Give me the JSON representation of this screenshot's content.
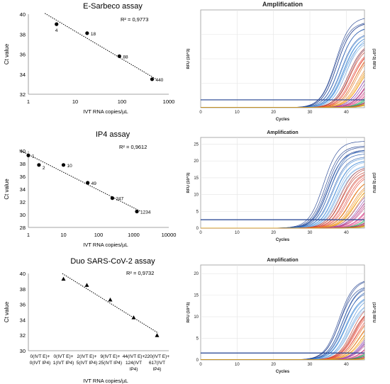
{
  "colors": {
    "trend": "#000000",
    "threshold": "#1f3f8f",
    "amp_palette": [
      "#1f3f8f",
      "#2a5db0",
      "#4a90d9",
      "#7fb3e6",
      "#c0392b",
      "#e74c3c",
      "#e67e22",
      "#f39c12",
      "#8e44ad",
      "#c0397f",
      "#e75a9a",
      "#27ae60",
      "#b03060",
      "#d4a017"
    ]
  },
  "left_panels": [
    {
      "title": "E-Sarbeco assay",
      "r2": "R² = 0,9773",
      "ylabel": "Ct value",
      "xlabel": "IVT RNA copies/µL",
      "yticks": [
        "32",
        "34",
        "36",
        "38",
        "40"
      ],
      "xticks": [
        "1",
        "10",
        "100",
        "1000"
      ]
    },
    {
      "title": "IP4 assay",
      "r2": "R² = 0,9612",
      "ylabel": "Ct value",
      "xlabel": "IVT RNA copies/µL",
      "yticks": [
        "28",
        "30",
        "32",
        "34",
        "36",
        "38",
        "40"
      ],
      "xticks": [
        "1",
        "10",
        "100",
        "1000",
        "10000"
      ]
    },
    {
      "title": "Duo SARS-CoV-2 assay",
      "r2": "R² = 0,9732",
      "ylabel": "Ct value",
      "xlabel": "IVT RNA copies/µL",
      "yticks": [
        "30",
        "32",
        "34",
        "36",
        "38",
        "40"
      ],
      "xticks": [
        "0(IVT E)+\n0(IVT IP4)",
        "0(IVT E)+\n1(IVT IP4)",
        "2(IVT E)+\n5(IVT IP4)",
        "9(IVT E)+\n25(IVT IP4)",
        "44(IVT E)+\n124(IVT\nIP4)",
        "220(IVT E)+\n617(IVT\nIP4)"
      ]
    }
  ],
  "right_panels": [
    {
      "title": "Amplification",
      "ylabel": "RFU (10^3)",
      "ylabel_right": "(10^3) RFU",
      "xlabel": "Cycles",
      "xticks": [
        "0",
        "10",
        "20",
        "30",
        "40"
      ],
      "yticks": []
    },
    {
      "title": "Amplification",
      "ylabel": "RFU (10^3)",
      "ylabel_right": "(10^3) RFU",
      "xlabel": "Cycles",
      "xticks": [
        "0",
        "10",
        "20",
        "30",
        "40"
      ],
      "yticks": [
        "0",
        "5",
        "10",
        "15",
        "20",
        "25"
      ]
    },
    {
      "title": "Amplification",
      "ylabel": "RFU (10^3)",
      "ylabel_right": "(10^3) RFU",
      "xlabel": "Cycles",
      "xticks": [
        "0",
        "10",
        "20",
        "30",
        "40"
      ],
      "yticks": [
        "0",
        "5",
        "10",
        "15",
        "20"
      ]
    }
  ],
  "chart_data": [
    {
      "type": "scatter",
      "title": "E-Sarbeco assay",
      "xlabel": "IVT RNA copies/µL",
      "ylabel": "Ct value",
      "x_scale": "log",
      "xlim": [
        1,
        1000
      ],
      "ylim": [
        32,
        40
      ],
      "marker": "circle",
      "trendline": "linear-dotted",
      "points": [
        {
          "x": 4,
          "y": 39.0,
          "label": "4"
        },
        {
          "x": 18,
          "y": 38.1,
          "label": "18"
        },
        {
          "x": 88,
          "y": 35.8,
          "label": "88"
        },
        {
          "x": 440,
          "y": 33.5,
          "label": "440"
        }
      ],
      "r_squared": "0,9773"
    },
    {
      "type": "scatter",
      "title": "IP4 assay",
      "xlabel": "IVT RNA copies/µL",
      "ylabel": "Ct value",
      "x_scale": "log",
      "xlim": [
        1,
        10000
      ],
      "ylim": [
        28,
        40
      ],
      "marker": "circle",
      "trendline": "linear-dotted",
      "points": [
        {
          "x": 1,
          "y": 39.3,
          "label": "1"
        },
        {
          "x": 2,
          "y": 37.8,
          "label": "2"
        },
        {
          "x": 10,
          "y": 37.8,
          "label": "10"
        },
        {
          "x": 49,
          "y": 35.0,
          "label": "49"
        },
        {
          "x": 247,
          "y": 32.6,
          "label": "247"
        },
        {
          "x": 1234,
          "y": 30.5,
          "label": "1234"
        }
      ],
      "r_squared": "0,9612"
    },
    {
      "type": "scatter",
      "title": "Duo SARS-CoV-2 assay",
      "xlabel": "IVT RNA copies/µL",
      "ylabel": "Ct value",
      "x_scale": "category",
      "ylim": [
        30,
        40
      ],
      "marker": "triangle",
      "trendline": "linear-dotted",
      "categories": [
        "0(IVT E)+0(IVT IP4)",
        "0(IVT E)+1(IVT IP4)",
        "2(IVT E)+5(IVT IP4)",
        "9(IVT E)+25(IVT IP4)",
        "44(IVT E)+124(IVT IP4)",
        "220(IVT E)+617(IVT IP4)"
      ],
      "values": [
        null,
        39.3,
        38.5,
        36.6,
        34.3,
        32.0
      ],
      "r_squared": "0,9732"
    },
    {
      "type": "line",
      "title": "Amplification",
      "xlabel": "Cycles",
      "ylabel": "RFU (10^3)",
      "xlim": [
        0,
        45
      ],
      "ylim": [
        0,
        20
      ],
      "threshold": 1.6,
      "curves": 48,
      "onset_range": [
        31,
        44
      ],
      "plateau_range": [
        5,
        18.5
      ]
    },
    {
      "type": "line",
      "title": "Amplification",
      "xlabel": "Cycles",
      "ylabel": "RFU (10^3)",
      "xlim": [
        0,
        45
      ],
      "ylim": [
        0,
        27
      ],
      "threshold": 2.5,
      "curves": 52,
      "onset_range": [
        28,
        44
      ],
      "plateau_range": [
        5,
        26
      ]
    },
    {
      "type": "line",
      "title": "Amplification",
      "xlabel": "Cycles",
      "ylabel": "RFU (10^3)",
      "xlim": [
        0,
        45
      ],
      "ylim": [
        0,
        22
      ],
      "threshold": 1.6,
      "curves": 48,
      "onset_range": [
        32,
        44
      ],
      "plateau_range": [
        3,
        19
      ]
    }
  ]
}
